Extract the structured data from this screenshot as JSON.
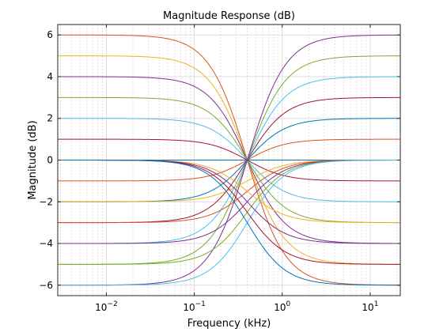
{
  "chart_data": {
    "type": "line",
    "title": "Magnitude Response (dB)",
    "xlabel": "Frequency (kHz)",
    "ylabel": "Magnitude (dB)",
    "xscale": "log",
    "xlim": [
      0.0028,
      22
    ],
    "ylim": [
      -6.5,
      6.5
    ],
    "grid": true,
    "minor_grid_x": true,
    "y_ticks": [
      -6,
      -4,
      -2,
      0,
      2,
      4,
      6
    ],
    "y_tick_labels": [
      "−6",
      "−4",
      "−2",
      "0",
      "2",
      "4",
      "6"
    ],
    "x_ticks": [
      0.01,
      0.1,
      1,
      10
    ],
    "x_tick_labels": [
      {
        "base": "10",
        "exp": "−2"
      },
      {
        "base": "10",
        "exp": "−1"
      },
      {
        "base": "10",
        "exp": "0"
      },
      {
        "base": "10",
        "exp": "1"
      }
    ],
    "transition_center_khz": 0.4,
    "series": [
      {
        "low_db": 6,
        "high_db": -6,
        "color": "#D95319"
      },
      {
        "low_db": 5,
        "high_db": -5,
        "color": "#EDB120"
      },
      {
        "low_db": 4,
        "high_db": -4,
        "color": "#7E2F8E"
      },
      {
        "low_db": 3,
        "high_db": -3,
        "color": "#77AC30"
      },
      {
        "low_db": 2,
        "high_db": -2,
        "color": "#4DBEEE"
      },
      {
        "low_db": 1,
        "high_db": -1,
        "color": "#A2142F"
      },
      {
        "low_db": 0,
        "high_db": 0,
        "color": "#0072BD"
      },
      {
        "low_db": -1,
        "high_db": 1,
        "color": "#D95319"
      },
      {
        "low_db": -2,
        "high_db": 2,
        "color": "#0072BD"
      },
      {
        "low_db": -3,
        "high_db": 3,
        "color": "#A2142F"
      },
      {
        "low_db": -4,
        "high_db": 4,
        "color": "#4DBEEE"
      },
      {
        "low_db": -5,
        "high_db": 5,
        "color": "#77AC30"
      },
      {
        "low_db": -6,
        "high_db": 6,
        "color": "#7E2F8E"
      },
      {
        "low_db": -2,
        "high_db": 0,
        "color": "#EDB120"
      },
      {
        "low_db": -3,
        "high_db": 0,
        "color": "#D95319"
      },
      {
        "low_db": -4,
        "high_db": 0,
        "color": "#7E2F8E"
      },
      {
        "low_db": -5,
        "high_db": 0,
        "color": "#77AC30"
      },
      {
        "low_db": -6,
        "high_db": 0,
        "color": "#4DBEEE"
      },
      {
        "low_db": 0,
        "high_db": -3,
        "color": "#EDB120"
      },
      {
        "low_db": 0,
        "high_db": -4,
        "color": "#7E2F8E"
      },
      {
        "low_db": 0,
        "high_db": -5,
        "color": "#A2142F"
      },
      {
        "low_db": 0,
        "high_db": -6,
        "color": "#0072BD"
      }
    ]
  }
}
